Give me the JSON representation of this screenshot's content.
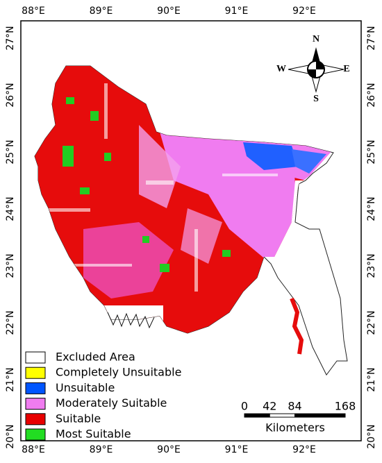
{
  "longitude_labels": [
    "88°E",
    "89°E",
    "90°E",
    "91°E",
    "92°E"
  ],
  "latitude_labels": [
    "27°N",
    "26°N",
    "25°N",
    "24°N",
    "23°N",
    "22°N",
    "21°N",
    "20°N"
  ],
  "compass": {
    "north": "N",
    "south": "S",
    "east": "E",
    "west": "W"
  },
  "legend": [
    {
      "label": "Excluded Area",
      "color": "#ffffff"
    },
    {
      "label": "Completely Unsuitable",
      "color": "#ffff00"
    },
    {
      "label": "Unsuitable",
      "color": "#0055ff"
    },
    {
      "label": "Moderately Suitable",
      "color": "#f07cf0"
    },
    {
      "label": "Suitable",
      "color": "#e80000"
    },
    {
      "label": "Most Suitable",
      "color": "#22dd22"
    }
  ],
  "scale_bar": {
    "ticks": [
      0,
      42,
      84,
      168
    ],
    "unit": "Kilometers"
  }
}
